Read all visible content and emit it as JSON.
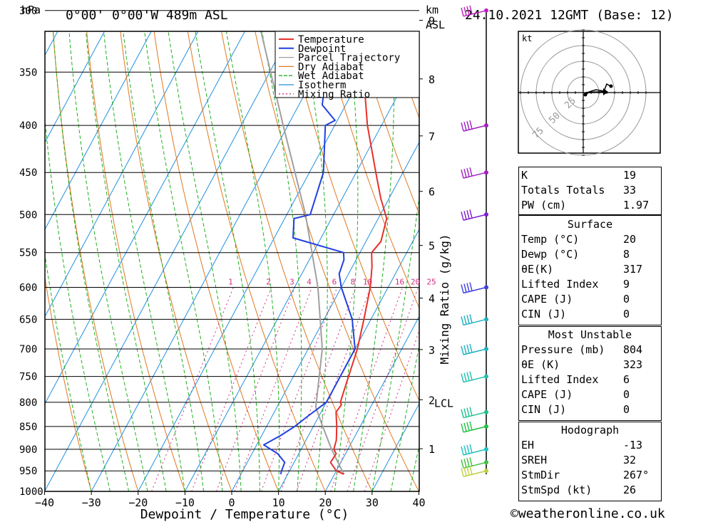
{
  "header": {
    "hpa_unit": "hPa",
    "location": "0°00' 0°00'W 489m ASL",
    "km_unit": "km",
    "asl": "ASL",
    "datetime": "24.10.2021 12GMT (Base: 12)"
  },
  "chart_data": {
    "type": "skew-t",
    "xlabel": "Dewpoint / Temperature (°C)",
    "ylabel": "hPa",
    "x_ticks": [
      "-40",
      "-30",
      "-20",
      "-10",
      "0",
      "10",
      "20",
      "30",
      "40"
    ],
    "xlim": [
      -40,
      40
    ],
    "ylim": [
      1000,
      300
    ],
    "pressure_levels": [
      300,
      350,
      400,
      450,
      500,
      550,
      600,
      650,
      700,
      750,
      800,
      850,
      900,
      950,
      1000
    ],
    "km_ticks": [
      "1",
      "2",
      "3",
      "4",
      "5",
      "6",
      "7",
      "8",
      "9"
    ],
    "lcl_label": "LCL",
    "mixing_ratio_axis_label": "Mixing Ratio (g/kg)",
    "mixing_ratio_labels": [
      "1",
      "2",
      "3",
      "4",
      "6",
      "8",
      "10",
      "16",
      "20",
      "25"
    ],
    "legend": [
      {
        "name": "Temperature",
        "color": "#e8302a"
      },
      {
        "name": "Dewpoint",
        "color": "#2040e0"
      },
      {
        "name": "Parcel Trajectory",
        "color": "#a0a0a0"
      },
      {
        "name": "Dry Adiabat",
        "color": "#e07820"
      },
      {
        "name": "Wet Adiabat",
        "color": "#20b020"
      },
      {
        "name": "Isotherm",
        "color": "#2090e0"
      },
      {
        "name": "Mixing Ratio",
        "color": "#d03080"
      }
    ],
    "series": [
      {
        "name": "Temperature",
        "points": [
          [
            958,
            22
          ],
          [
            950,
            20
          ],
          [
            930,
            17.8
          ],
          [
            910,
            18
          ],
          [
            900,
            17
          ],
          [
            880,
            16.5
          ],
          [
            850,
            15
          ],
          [
            820,
            13.2
          ],
          [
            805,
            13.5
          ],
          [
            800,
            13
          ],
          [
            780,
            12.5
          ],
          [
            700,
            10.5
          ],
          [
            650,
            8.5
          ],
          [
            600,
            6.2
          ],
          [
            570,
            4.2
          ],
          [
            550,
            2.5
          ],
          [
            535,
            3.2
          ],
          [
            505,
            1.8
          ],
          [
            480,
            -1.8
          ],
          [
            450,
            -5.8
          ],
          [
            400,
            -13
          ],
          [
            350,
            -20
          ],
          [
            330,
            -24.3
          ],
          [
            300,
            -30.5
          ]
        ]
      },
      {
        "name": "Dewpoint",
        "points": [
          [
            958,
            8.5
          ],
          [
            950,
            8.3
          ],
          [
            930,
            8
          ],
          [
            910,
            5.5
          ],
          [
            900,
            3.5
          ],
          [
            890,
            1.5
          ],
          [
            870,
            4
          ],
          [
            850,
            6
          ],
          [
            830,
            7.5
          ],
          [
            800,
            10
          ],
          [
            780,
            10
          ],
          [
            700,
            10
          ],
          [
            650,
            6
          ],
          [
            600,
            0
          ],
          [
            580,
            -2
          ],
          [
            560,
            -2.6
          ],
          [
            550,
            -3.5
          ],
          [
            530,
            -16
          ],
          [
            505,
            -18
          ],
          [
            500,
            -15
          ],
          [
            450,
            -17
          ],
          [
            400,
            -22
          ],
          [
            395,
            -20.5
          ],
          [
            380,
            -25
          ],
          [
            350,
            -28
          ],
          [
            320,
            -28.3
          ],
          [
            305,
            -24
          ],
          [
            300,
            -27
          ],
          [
            298,
            -26
          ],
          [
            295,
            -28
          ]
        ]
      },
      {
        "name": "Parcel Trajectory",
        "points": [
          [
            958,
            22
          ],
          [
            900,
            16.5
          ],
          [
            850,
            12
          ],
          [
            810,
            8.3
          ],
          [
            700,
            3
          ],
          [
            600,
            -5
          ],
          [
            500,
            -16
          ],
          [
            400,
            -31
          ],
          [
            300,
            -50
          ]
        ]
      }
    ],
    "wind_barbs": [
      {
        "p": 300,
        "color": "#c020c0"
      },
      {
        "p": 400,
        "color": "#a020c0"
      },
      {
        "p": 450,
        "color": "#a020c0"
      },
      {
        "p": 500,
        "color": "#8020d0"
      },
      {
        "p": 600,
        "color": "#4040e0"
      },
      {
        "p": 650,
        "color": "#20b0c0"
      },
      {
        "p": 700,
        "color": "#20b0c0"
      },
      {
        "p": 750,
        "color": "#20c0b0"
      },
      {
        "p": 820,
        "color": "#20c090"
      },
      {
        "p": 850,
        "color": "#20c040"
      },
      {
        "p": 900,
        "color": "#20c0c0"
      },
      {
        "p": 930,
        "color": "#40c040"
      },
      {
        "p": 950,
        "color": "#c0d040"
      }
    ]
  },
  "hodograph": {
    "unit": "kt",
    "ring_labels": [
      "25",
      "50",
      "75"
    ]
  },
  "indices": {
    "general": [
      {
        "label": "K",
        "value": "19"
      },
      {
        "label": "Totals Totals",
        "value": "33"
      },
      {
        "label": "PW (cm)",
        "value": "1.97"
      }
    ],
    "surface": {
      "title": "Surface",
      "rows": [
        {
          "label": "Temp (°C)",
          "value": "20"
        },
        {
          "label": "Dewp (°C)",
          "value": "8"
        },
        {
          "label": "θE(K)",
          "value": "317"
        },
        {
          "label": "Lifted Index",
          "value": "9"
        },
        {
          "label": "CAPE (J)",
          "value": "0"
        },
        {
          "label": "CIN (J)",
          "value": "0"
        }
      ]
    },
    "most_unstable": {
      "title": "Most Unstable",
      "rows": [
        {
          "label": "Pressure (mb)",
          "value": "804"
        },
        {
          "label": "θE (K)",
          "value": "323"
        },
        {
          "label": "Lifted Index",
          "value": "6"
        },
        {
          "label": "CAPE (J)",
          "value": "0"
        },
        {
          "label": "CIN (J)",
          "value": "0"
        }
      ]
    },
    "hodograph": {
      "title": "Hodograph",
      "rows": [
        {
          "label": "EH",
          "value": "-13"
        },
        {
          "label": "SREH",
          "value": "32"
        },
        {
          "label": "StmDir",
          "value": "267°"
        },
        {
          "label": "StmSpd (kt)",
          "value": "26"
        }
      ]
    }
  },
  "footer": {
    "copyright": "©weatheronline.co.uk"
  }
}
